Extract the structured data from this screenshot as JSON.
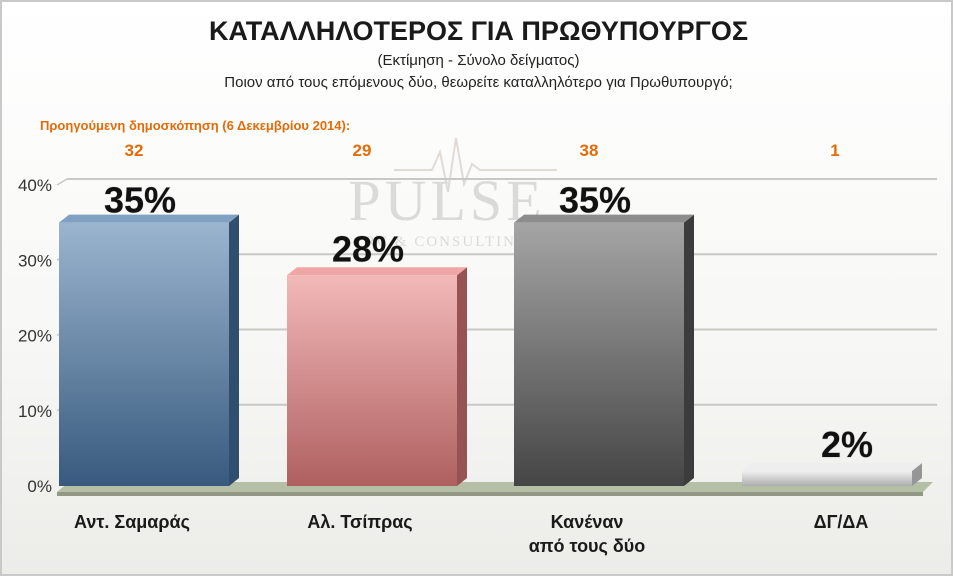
{
  "title": "ΚΑΤΑΛΛΗΛΟΤΕΡΟΣ ΓΙΑ ΠΡΩΘΥΠΟΥΡΓΟΣ",
  "subtitle_1": "(Εκτίμηση - Σύνολο δείγματος)",
  "subtitle_2": "Ποιον από τους επόμενους δύο, θεωρείτε καταλληλότερο για Πρωθυπουργό;",
  "previous_poll_label": "Προηγούμενη δημοσκόπηση  (6 Δεκεμβρίου 2014):",
  "watermark": {
    "main": "PULSE",
    "sub": "RC & CONSULTING"
  },
  "colors": {
    "previous_values": "#e36c09",
    "samaras": "#4a78a8",
    "tsipras": "#e98080",
    "neither": "#5c5c5c",
    "dk_na": "#e6e6e6",
    "floor": "#b5bfa6"
  },
  "chart_data": {
    "type": "bar",
    "categories": [
      "Αντ. Σαμαράς",
      "Αλ. Τσίπρας",
      "Κανέναν από τους δύο",
      "ΔΓ/ΔΑ"
    ],
    "category_lines": [
      [
        "Αντ. Σαμαράς"
      ],
      [
        "Αλ. Τσίπρας"
      ],
      [
        "Κανέναν",
        "από τους δύο"
      ],
      [
        "ΔΓ/ΔΑ"
      ]
    ],
    "values": [
      35,
      28,
      35,
      2
    ],
    "value_labels": [
      "35%",
      "28%",
      "35%",
      "2%"
    ],
    "previous_values": [
      32,
      29,
      38,
      1
    ],
    "previous_labels": [
      "32",
      "29",
      "38",
      "1"
    ],
    "ylim": [
      0,
      40
    ],
    "yticks": [
      0,
      10,
      20,
      30,
      40
    ],
    "ytick_labels": [
      "0%",
      "10%",
      "20%",
      "30%",
      "40%"
    ],
    "grid": true,
    "legend": "none"
  }
}
